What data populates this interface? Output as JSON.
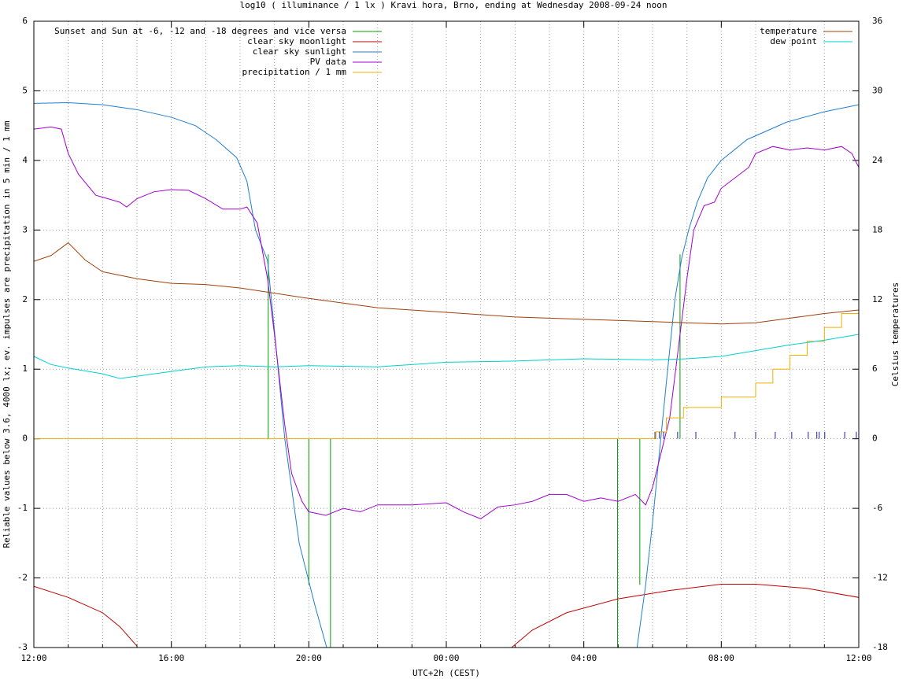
{
  "chart_data": {
    "type": "line",
    "title": "log10 ( illuminance / 1 lx ) Kravi hora, Brno, ending at Wednesday 2008-09-24 noon",
    "xlabel": "UTC+2h (CEST)",
    "ylabel": "Reliable values below 3.6, 4000 lx; ev. impulses are precipitation in 5 min / 1 mm",
    "y2label": "Celsius temperatures",
    "xlim": [
      0,
      24
    ],
    "xticks": [
      {
        "value": 0,
        "label": "12:00"
      },
      {
        "value": 4,
        "label": "16:00"
      },
      {
        "value": 8,
        "label": "20:00"
      },
      {
        "value": 12,
        "label": "00:00"
      },
      {
        "value": 16,
        "label": "04:00"
      },
      {
        "value": 20,
        "label": "08:00"
      },
      {
        "value": 24,
        "label": "12:00"
      }
    ],
    "xminorticks": [
      1,
      2,
      3,
      5,
      6,
      7,
      9,
      10,
      11,
      13,
      14,
      15,
      17,
      18,
      19,
      21,
      22,
      23
    ],
    "ylim": [
      -3,
      6
    ],
    "yticks": [
      -3,
      -2,
      -1,
      0,
      1,
      2,
      3,
      4,
      5,
      6
    ],
    "y2lim": [
      -18,
      36
    ],
    "y2ticks": [
      -18,
      -12,
      -6,
      0,
      6,
      12,
      18,
      24,
      30,
      36
    ],
    "grid": true,
    "legend": {
      "y": "top left",
      "y2": "top right"
    },
    "series": [
      {
        "name": "Sunset and Sun at -6, -12 and -18 degrees and vice versa",
        "color": "#00a000",
        "style": "impulses",
        "x": [
          6.82,
          8.0,
          8.63,
          16.98,
          17.63,
          18.8
        ],
        "values": [
          2.65,
          -2.1,
          -3,
          -3,
          -2.1,
          2.65
        ]
      },
      {
        "name": "clear sky moonlight",
        "color": "#c00000",
        "style": "line",
        "x": [
          0,
          1,
          2,
          2.5,
          3,
          3.1,
          13.9,
          14.5,
          15.5,
          17,
          18.5,
          20,
          21,
          22.5,
          24
        ],
        "values": [
          -2.12,
          -2.28,
          -2.5,
          -2.7,
          -2.98,
          null,
          -3,
          -2.75,
          -2.5,
          -2.3,
          -2.18,
          -2.09,
          -2.09,
          -2.15,
          -2.28
        ]
      },
      {
        "name": "clear sky sunlight",
        "color": "#1f7fcf",
        "style": "line",
        "x": [
          0,
          1,
          2,
          3,
          4,
          4.7,
          5.3,
          5.9,
          6.2,
          6.45,
          6.8,
          7.03,
          7.3,
          7.72,
          8.18,
          8.52,
          8.6,
          17.55,
          17.8,
          18.0,
          18.2,
          18.4,
          18.65,
          18.85,
          19.05,
          19.3,
          19.6,
          20,
          20.75,
          21.9,
          23,
          24
        ],
        "values": [
          4.82,
          4.83,
          4.8,
          4.73,
          4.62,
          4.5,
          4.3,
          4.04,
          3.7,
          3.0,
          2.56,
          1.4,
          0,
          -1.5,
          -2.4,
          -3,
          null,
          -3,
          -2.1,
          -1.2,
          -0.2,
          0.8,
          2,
          2.6,
          3,
          3.4,
          3.75,
          4.0,
          4.3,
          4.55,
          4.7,
          4.8
        ]
      },
      {
        "name": "PV data",
        "color": "#a000d0",
        "style": "line",
        "x": [
          0,
          0.5,
          0.8,
          1,
          1.3,
          1.8,
          2.5,
          2.7,
          3,
          3.5,
          4,
          4.5,
          5,
          5.5,
          6,
          6.2,
          6.5,
          6.8,
          7,
          7.3,
          7.5,
          7.8,
          8,
          8.5,
          9,
          9.5,
          10,
          11,
          12,
          12.5,
          13,
          13.5,
          14,
          14.5,
          15,
          15.5,
          16,
          16.5,
          17,
          17.5,
          17.8,
          18,
          18.2,
          18.5,
          18.8,
          19,
          19.2,
          19.5,
          19.8,
          20,
          20.4,
          20.8,
          21,
          21.5,
          22,
          22.5,
          23,
          23.5,
          23.8,
          24
        ],
        "values": [
          4.45,
          4.48,
          4.45,
          4.1,
          3.8,
          3.5,
          3.4,
          3.33,
          3.45,
          3.55,
          3.58,
          3.57,
          3.45,
          3.3,
          3.3,
          3.33,
          3.1,
          2.3,
          1.5,
          0.2,
          -0.5,
          -0.9,
          -1.05,
          -1.1,
          -1.0,
          -1.05,
          -0.95,
          -0.95,
          -0.92,
          -1.05,
          -1.15,
          -0.98,
          -0.95,
          -0.9,
          -0.8,
          -0.8,
          -0.9,
          -0.85,
          -0.9,
          -0.8,
          -0.95,
          -0.7,
          -0.3,
          0.3,
          1.5,
          2.3,
          3.0,
          3.35,
          3.4,
          3.6,
          3.75,
          3.9,
          4.1,
          4.2,
          4.15,
          4.18,
          4.15,
          4.2,
          4.1,
          3.9
        ]
      },
      {
        "name": "precipitation / 1 mm",
        "color": "#f0b000",
        "style": "steps",
        "x": [
          0,
          18.1,
          18.4,
          18.9,
          20,
          21,
          21.5,
          22,
          22.5,
          23,
          23.5,
          24
        ],
        "values": [
          0,
          0.1,
          0.3,
          0.45,
          0.6,
          0.8,
          1.0,
          1.2,
          1.4,
          1.6,
          1.8,
          2.1
        ]
      },
      {
        "color": "#2020a0",
        "style": "impulses",
        "x": [
          18.07,
          18.2,
          18.32,
          18.73,
          19.26,
          20.4,
          21.0,
          21.57,
          22.05,
          22.53,
          22.78,
          22.85,
          23.01,
          23.59,
          23.93
        ],
        "values": [
          0.1,
          0.1,
          0.1,
          0.1,
          0.1,
          0.1,
          0.1,
          0.1,
          0.1,
          0.1,
          0.1,
          0.1,
          0.1,
          0.1,
          0.1
        ]
      },
      {
        "name": "temperature",
        "color": "#a0400a",
        "style": "line",
        "axis": "y2",
        "x": [
          0,
          0.5,
          1,
          1.5,
          2,
          3,
          4,
          5,
          6,
          8,
          10,
          12,
          14,
          16,
          18,
          20,
          21,
          22,
          23,
          24
        ],
        "values": [
          15.3,
          15.8,
          16.9,
          15.4,
          14.4,
          13.8,
          13.4,
          13.3,
          13.0,
          12.1,
          11.3,
          10.9,
          10.5,
          10.3,
          10.1,
          9.9,
          10.0,
          10.4,
          10.8,
          11.1
        ]
      },
      {
        "name": "dew point",
        "color": "#00d0d0",
        "style": "line",
        "axis": "y2",
        "x": [
          0,
          0.5,
          1,
          2,
          2.5,
          3,
          4,
          5,
          6,
          7,
          8,
          10,
          11,
          12,
          14,
          16,
          18,
          19,
          20,
          21,
          22,
          23,
          24
        ],
        "values": [
          7.1,
          6.4,
          6.1,
          5.6,
          5.2,
          5.4,
          5.8,
          6.2,
          6.3,
          6.2,
          6.3,
          6.2,
          6.4,
          6.6,
          6.7,
          6.9,
          6.8,
          6.9,
          7.1,
          7.6,
          8.1,
          8.5,
          9.0
        ]
      }
    ]
  }
}
